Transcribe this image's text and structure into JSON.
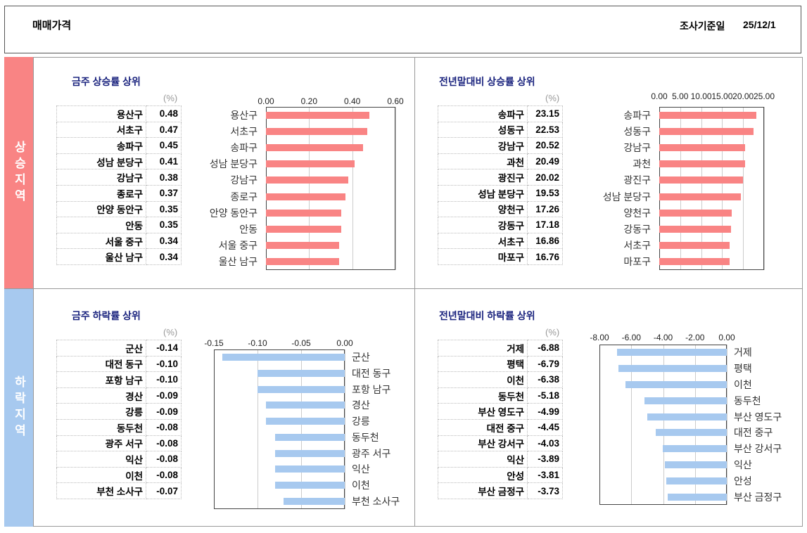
{
  "header": {
    "title": "매매가격",
    "date_label": "조사기준일",
    "date": "25/12/1"
  },
  "side": {
    "up": "상승지역",
    "down": "하락지역"
  },
  "colors": {
    "up": "#f98484",
    "down": "#a7c9ef"
  },
  "unit": "(%)",
  "chart_data": [
    {
      "type": "bar",
      "title": "금주 상승률 상위",
      "categories": [
        "용산구",
        "서초구",
        "송파구",
        "성남 분당구",
        "강남구",
        "종로구",
        "안양 동안구",
        "안동",
        "서울 중구",
        "울산 남구"
      ],
      "values": [
        0.48,
        0.47,
        0.45,
        0.41,
        0.38,
        0.37,
        0.35,
        0.35,
        0.34,
        0.34
      ],
      "xlim": [
        0,
        0.6
      ],
      "ticks": [
        "0.00",
        "0.20",
        "0.40",
        "0.60"
      ]
    },
    {
      "type": "bar",
      "title": "전년말대비 상승률 상위",
      "categories": [
        "송파구",
        "성동구",
        "강남구",
        "과천",
        "광진구",
        "성남 분당구",
        "양천구",
        "강동구",
        "서초구",
        "마포구"
      ],
      "values": [
        23.15,
        22.53,
        20.52,
        20.49,
        20.02,
        19.53,
        17.26,
        17.18,
        16.86,
        16.76
      ],
      "xlim": [
        0,
        25
      ],
      "ticks": [
        "0.00",
        "5.00",
        "10.00",
        "15.00",
        "20.00",
        "25.00"
      ]
    },
    {
      "type": "bar",
      "title": "금주 하락률 상위",
      "categories": [
        "군산",
        "대전 동구",
        "포항 남구",
        "경산",
        "강릉",
        "동두천",
        "광주 서구",
        "익산",
        "이천",
        "부천 소사구"
      ],
      "values": [
        -0.14,
        -0.1,
        -0.1,
        -0.09,
        -0.09,
        -0.08,
        -0.08,
        -0.08,
        -0.08,
        -0.07
      ],
      "xlim": [
        -0.15,
        0
      ],
      "ticks": [
        "-0.15",
        "-0.10",
        "-0.05",
        "0.00"
      ]
    },
    {
      "type": "bar",
      "title": "전년말대비 하락률 상위",
      "categories": [
        "거제",
        "평택",
        "이천",
        "동두천",
        "부산 영도구",
        "대전 중구",
        "부산 강서구",
        "익산",
        "안성",
        "부산 금정구"
      ],
      "values": [
        -6.88,
        -6.79,
        -6.38,
        -5.18,
        -4.99,
        -4.45,
        -4.03,
        -3.89,
        -3.81,
        -3.73
      ],
      "xlim": [
        -8,
        0
      ],
      "ticks": [
        "-8.00",
        "-6.00",
        "-4.00",
        "-2.00",
        "0.00"
      ]
    }
  ]
}
